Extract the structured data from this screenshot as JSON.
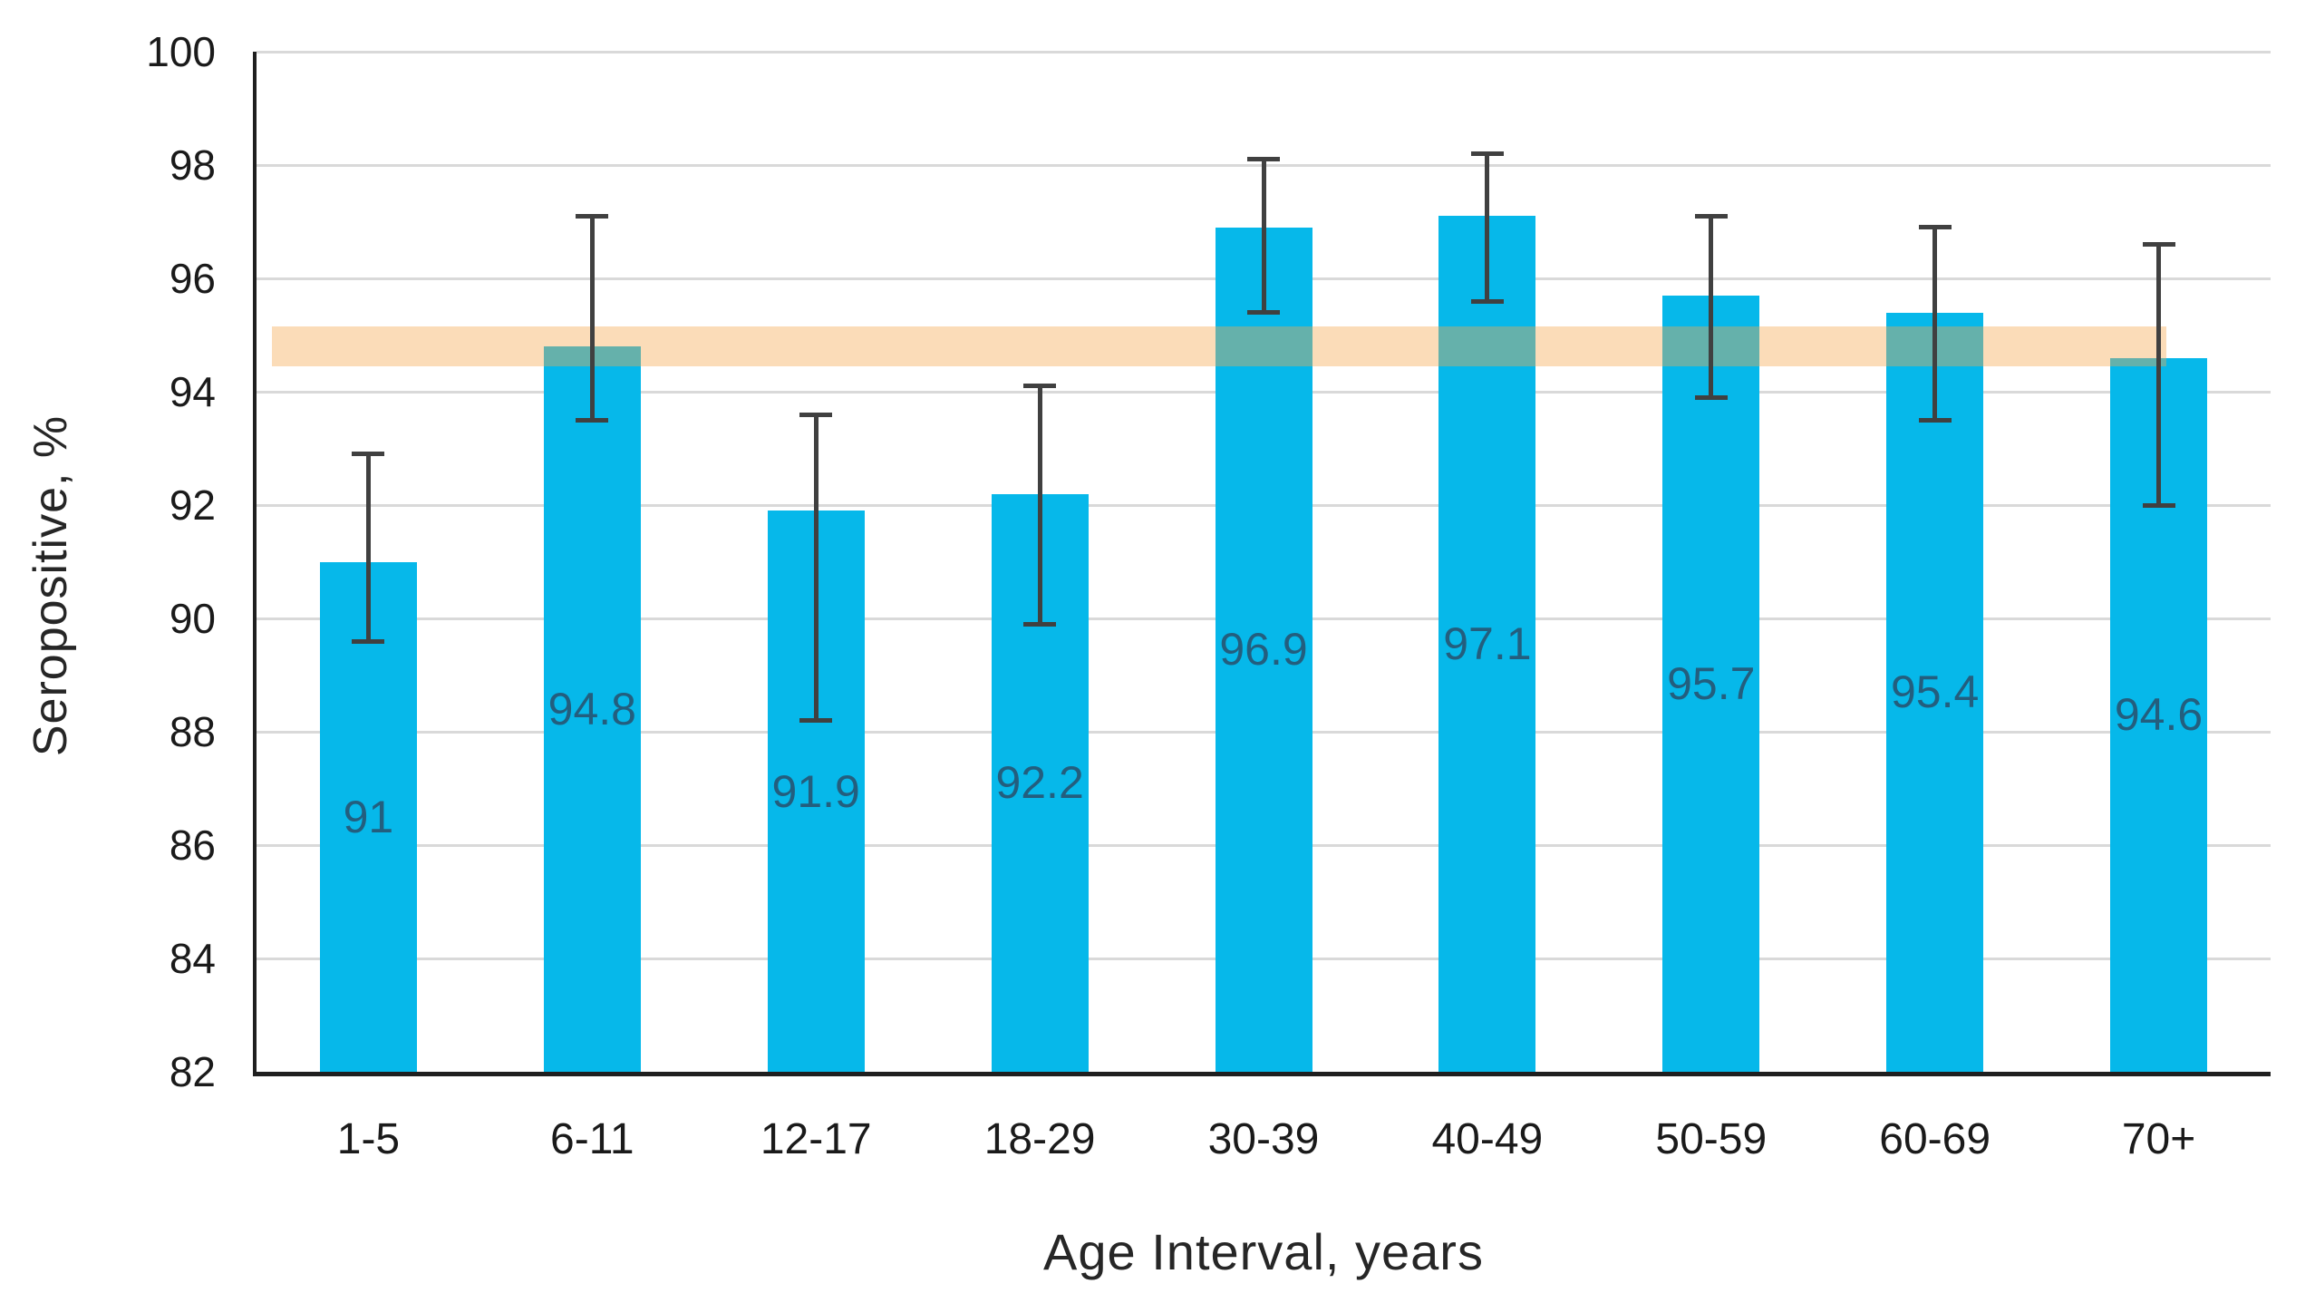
{
  "chart_data": {
    "type": "bar",
    "title": "",
    "xlabel": "Age Interval, years",
    "ylabel": "Seropositive, %",
    "ylim": [
      82,
      100
    ],
    "yticks": [
      100,
      98,
      96,
      94,
      92,
      90,
      88,
      86,
      84,
      82
    ],
    "grid": "horizontal",
    "legend": "none",
    "categories": [
      "1-5",
      "6-11",
      "12-17",
      "18-29",
      "30-39",
      "40-49",
      "50-59",
      "60-69",
      "70+"
    ],
    "values": [
      91,
      94.8,
      91.9,
      92.2,
      96.9,
      97.1,
      95.7,
      95.4,
      94.6
    ],
    "value_labels": [
      "91",
      "94.8",
      "91.9",
      "92.2",
      "96.9",
      "97.1",
      "95.7",
      "95.4",
      "94.6"
    ],
    "error_low": [
      89.6,
      93.5,
      88.2,
      89.9,
      95.4,
      95.6,
      93.9,
      93.5,
      92.0
    ],
    "error_high": [
      92.9,
      97.1,
      93.6,
      94.1,
      98.1,
      98.2,
      97.1,
      96.9,
      96.6
    ],
    "reference_band": {
      "low": 94.45,
      "high": 95.15
    },
    "colors": {
      "bar": "#06B8EA",
      "reference_band": "rgba(245,168,78,0.40)",
      "gridline": "#D9D9D9",
      "axis": "#1F1F1F",
      "error_bar": "#404040",
      "value_label": "#235E7E",
      "tick_label": "#1A1A1A"
    }
  }
}
